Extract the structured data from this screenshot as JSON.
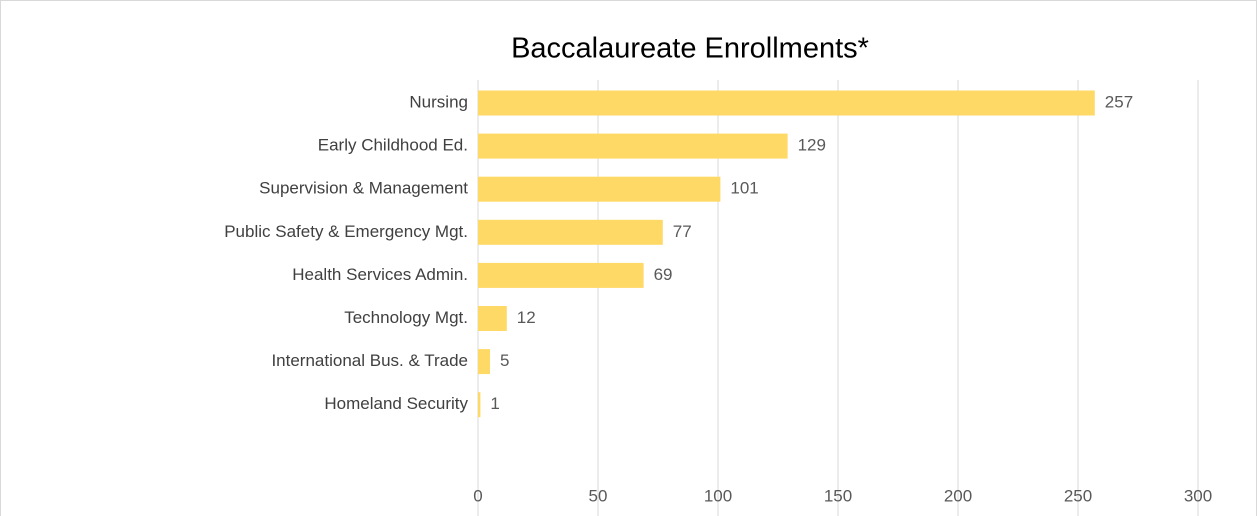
{
  "chart_data": {
    "type": "bar",
    "orientation": "horizontal",
    "title": "Baccalaureate Enrollments*",
    "categories": [
      "Nursing",
      "Early Childhood Ed.",
      "Supervision & Management",
      "Public Safety & Emergency Mgt.",
      "Health Services Admin.",
      "Technology Mgt.",
      "International Bus. & Trade",
      "Homeland Security"
    ],
    "values": [
      257,
      129,
      101,
      77,
      69,
      12,
      5,
      1
    ],
    "color": "#ffd966",
    "xlim": [
      0,
      300
    ],
    "xticks": [
      0,
      50,
      100,
      150,
      200,
      250,
      300
    ],
    "grid": true
  }
}
